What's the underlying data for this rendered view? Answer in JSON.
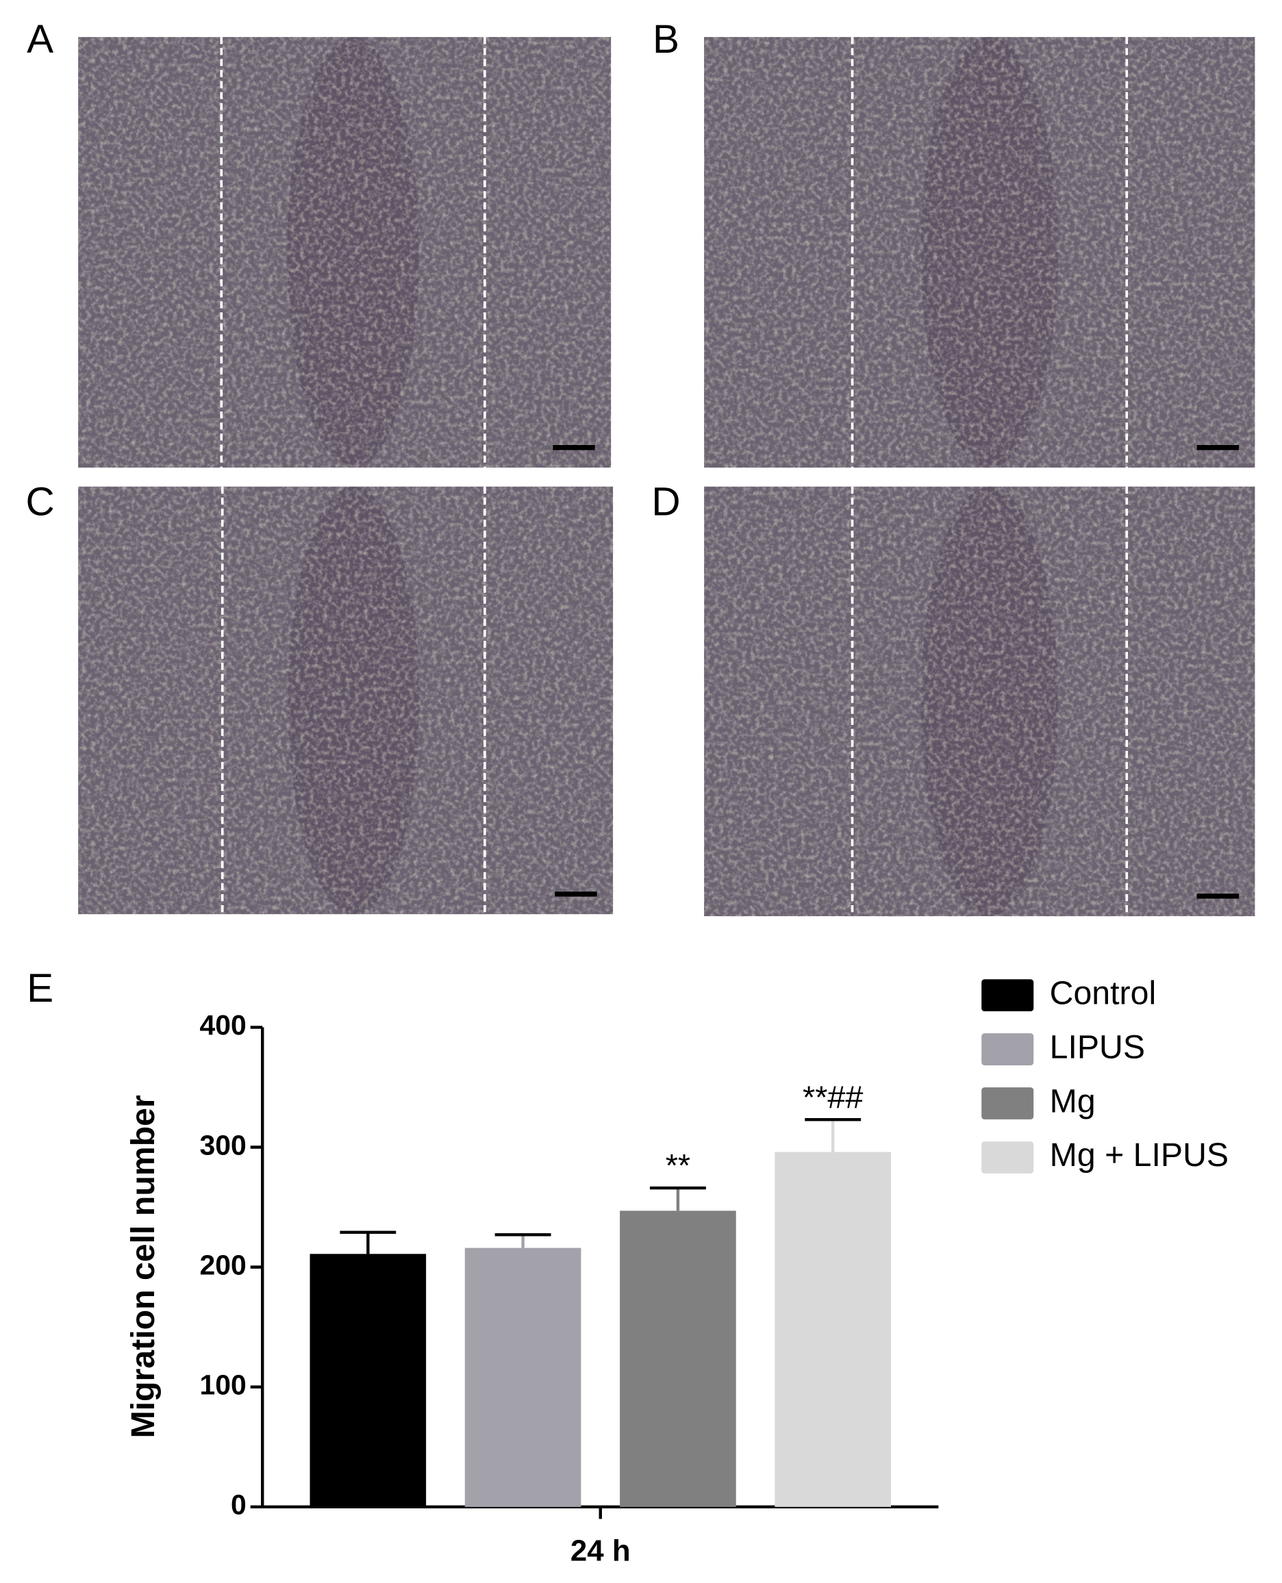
{
  "panels": [
    {
      "label": "A"
    },
    {
      "label": "B"
    },
    {
      "label": "C"
    },
    {
      "label": "D"
    }
  ],
  "chart_data": {
    "type": "bar",
    "panel_label": "E",
    "y_label": "Migration cell number",
    "categories": [
      "24 h"
    ],
    "series": [
      {
        "name": "Control",
        "color": "#000000",
        "values": [
          211
        ],
        "errors": [
          18
        ]
      },
      {
        "name": "LIPUS",
        "color": "#a3a2ab",
        "values": [
          216
        ],
        "errors": [
          11
        ]
      },
      {
        "name": "Mg",
        "color": "#808080",
        "values": [
          247
        ],
        "errors": [
          19
        ],
        "annotation": "**"
      },
      {
        "name": "Mg + LIPUS",
        "color": "#d9d9d9",
        "values": [
          296
        ],
        "errors": [
          27
        ],
        "annotation": "**##"
      }
    ],
    "ylim": [
      0,
      400
    ],
    "yticks": [
      0,
      100,
      200,
      300,
      400
    ],
    "legend": "right"
  }
}
